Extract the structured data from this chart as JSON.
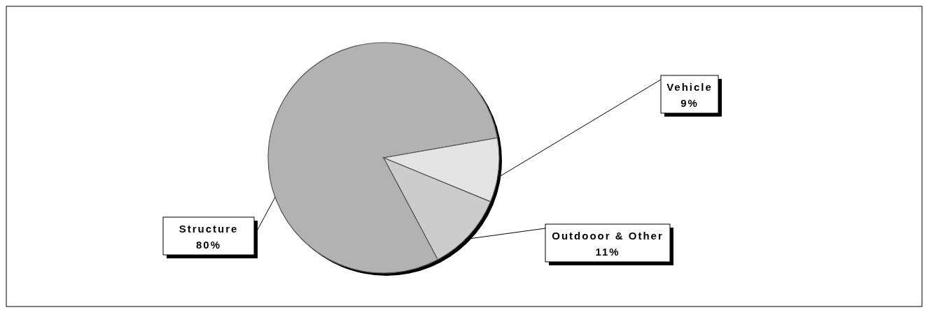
{
  "chart_data": {
    "type": "pie",
    "categories": [
      "Structure",
      "Vehicle",
      "Outdooor & Other"
    ],
    "values": [
      80,
      9,
      11
    ],
    "value_labels": [
      "80%",
      "9%",
      "11%"
    ],
    "colors": [
      "#b2b2b2",
      "#e3e3e3",
      "#cccccc"
    ]
  }
}
